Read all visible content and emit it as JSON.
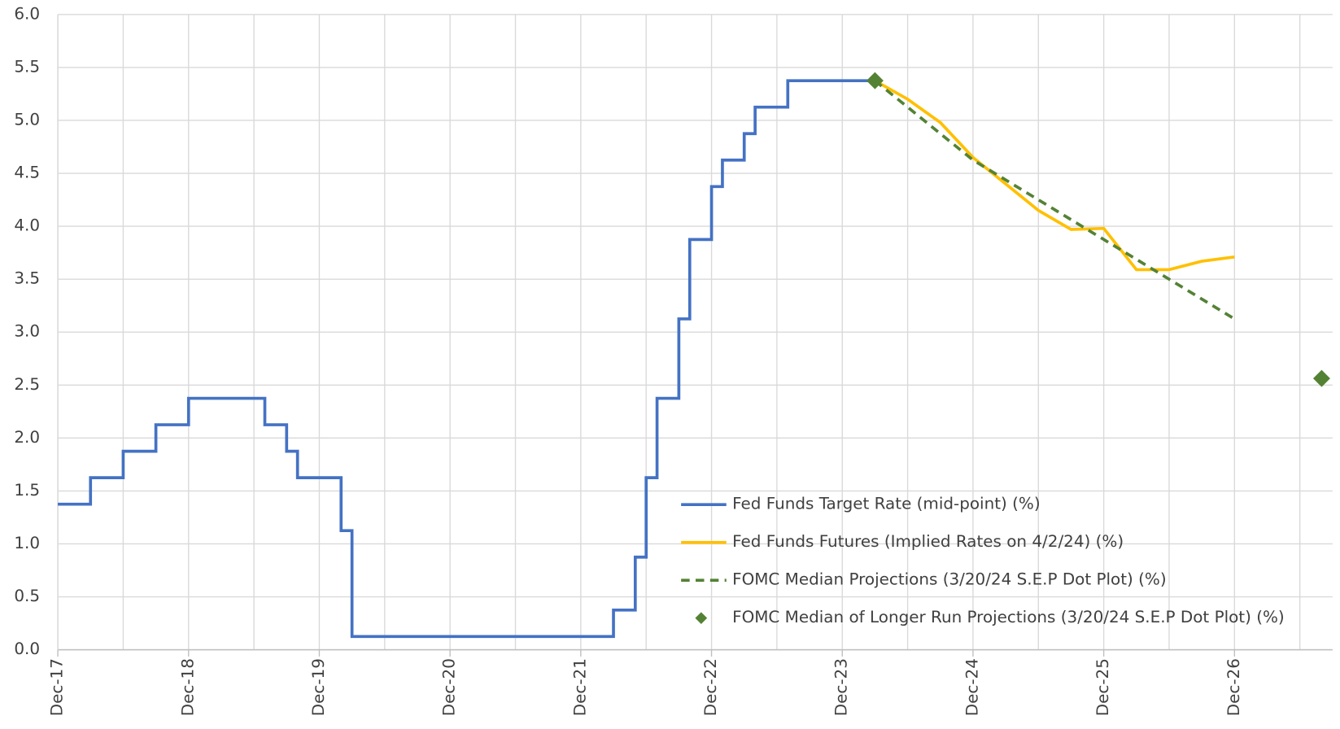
{
  "chart_data": {
    "type": "line",
    "xlim": [
      "Dec-17",
      "Sep-27"
    ],
    "xticks": [
      "Dec-17",
      "Dec-18",
      "Dec-19",
      "Dec-20",
      "Dec-21",
      "Dec-22",
      "Dec-23",
      "Dec-24",
      "Dec-25",
      "Dec-26"
    ],
    "ylim": [
      0,
      6
    ],
    "yticks": [
      {
        "value": 0,
        "label": "0.0"
      },
      0.5,
      {
        "value": 1,
        "label": "1.0"
      },
      1.5,
      {
        "value": 2,
        "label": "2.0"
      },
      2.5,
      {
        "value": 3,
        "label": "3.0"
      },
      3.5,
      {
        "value": 4,
        "label": "4.0"
      },
      4.5,
      {
        "value": 5,
        "label": "5.0"
      },
      5.5,
      {
        "value": 6,
        "label": "6.0"
      }
    ],
    "grid": true,
    "minor_grid": true,
    "series": [
      {
        "name": "Fed Funds Target Rate (mid-point) (%)",
        "color": "#4472c4",
        "style": "step",
        "x": [
          "Dec-17",
          "Mar-18",
          "Jun-18",
          "Sep-18",
          "Dec-18",
          "Jul-19",
          "Sep-19",
          "Oct-19",
          "Feb-20",
          "Mar-20",
          "Mar-22",
          "May-22",
          "Jun-22",
          "Jul-22",
          "Sep-22",
          "Oct-22",
          "Dec-22",
          "Jan-23",
          "Mar-23",
          "Apr-23",
          "Jul-23",
          "Mar-24"
        ],
        "values": [
          1.375,
          1.625,
          1.875,
          2.125,
          2.375,
          2.125,
          1.875,
          1.625,
          1.125,
          0.125,
          0.375,
          0.875,
          1.625,
          2.375,
          3.125,
          3.875,
          4.375,
          4.625,
          4.875,
          5.125,
          5.375,
          5.375
        ]
      },
      {
        "name": "Fed Funds Futures (Implied Rates on 4/2/24) (%)",
        "color": "#ffc000",
        "style": "solid",
        "x": [
          "Mar-24",
          "Jun-24",
          "Sep-24",
          "Dec-24",
          "Mar-25",
          "Jun-25",
          "Sep-25",
          "Dec-25",
          "Mar-26",
          "Jun-26",
          "Sep-26",
          "Dec-26"
        ],
        "values": [
          5.375,
          5.2,
          4.98,
          4.65,
          4.4,
          4.15,
          3.97,
          3.98,
          3.59,
          3.59,
          3.67,
          3.71
        ]
      },
      {
        "name": "FOMC Median Projections (3/20/24 S.E.P Dot Plot) (%)",
        "color": "#548235",
        "style": "dashed",
        "x": [
          "Mar-24",
          "Dec-24",
          "Dec-25",
          "Dec-26"
        ],
        "values": [
          5.375,
          4.625,
          3.875,
          3.125
        ]
      },
      {
        "name": "FOMC Median of Longer Run Projections (3/20/24 S.E.P Dot Plot) (%)",
        "color": "#548235",
        "style": "marker",
        "x": [
          "Mar-24",
          "Aug-27"
        ],
        "values": [
          5.375,
          2.5625
        ]
      }
    ]
  }
}
